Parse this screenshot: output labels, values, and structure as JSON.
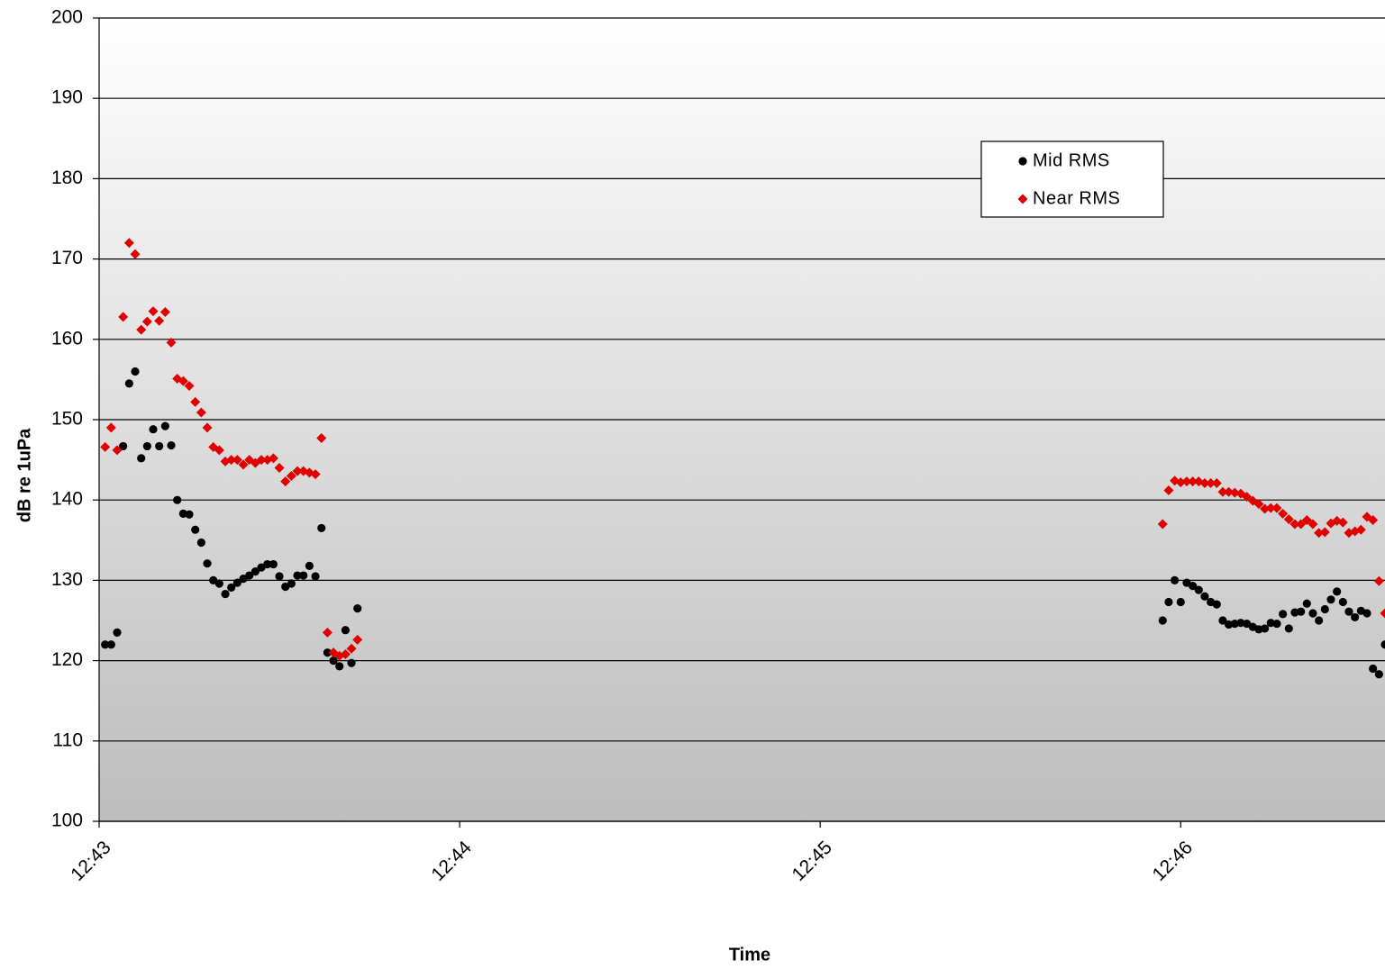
{
  "chart_data": {
    "type": "scatter",
    "x_label": "Time",
    "y_label": "dB re 1uPa",
    "x": [
      "12:43:01",
      "12:43:02",
      "12:43:03",
      "12:43:04",
      "12:43:05",
      "12:43:06",
      "12:43:07",
      "12:43:08",
      "12:43:09",
      "12:43:10",
      "12:43:11",
      "12:43:12",
      "12:43:13",
      "12:43:14",
      "12:43:15",
      "12:43:16",
      "12:43:17",
      "12:43:18",
      "12:43:19",
      "12:43:20",
      "12:43:21",
      "12:43:22",
      "12:43:23",
      "12:43:24",
      "12:43:25",
      "12:43:26",
      "12:43:27",
      "12:43:28",
      "12:43:29",
      "12:43:30",
      "12:43:31",
      "12:43:32",
      "12:43:33",
      "12:43:34",
      "12:43:35",
      "12:43:36",
      "12:43:37",
      "12:43:38",
      "12:43:39",
      "12:43:40",
      "12:43:41",
      "12:43:42",
      "12:43:43",
      "12:45:57",
      "12:45:58",
      "12:45:59",
      "12:46:00",
      "12:46:01",
      "12:46:02",
      "12:46:03",
      "12:46:04",
      "12:46:05",
      "12:46:06",
      "12:46:07",
      "12:46:08",
      "12:46:09",
      "12:46:10",
      "12:46:11",
      "12:46:12",
      "12:46:13",
      "12:46:14",
      "12:46:15",
      "12:46:16",
      "12:46:17",
      "12:46:18",
      "12:46:19",
      "12:46:20",
      "12:46:21",
      "12:46:22",
      "12:46:23",
      "12:46:24",
      "12:46:25",
      "12:46:26",
      "12:46:27",
      "12:46:28",
      "12:46:29",
      "12:46:30",
      "12:46:31",
      "12:46:32",
      "12:46:33",
      "12:46:34"
    ],
    "series": [
      {
        "name": "Mid RMS",
        "color": "#000000",
        "marker": "circle",
        "values": [
          122,
          122,
          123.5,
          146.7,
          154.5,
          156,
          145.2,
          146.7,
          148.8,
          146.7,
          149.2,
          146.8,
          140,
          138.3,
          138.2,
          136.3,
          134.7,
          132.1,
          130,
          129.6,
          128.3,
          129.1,
          129.7,
          130.2,
          130.6,
          131.1,
          131.6,
          132,
          132,
          130.5,
          129.2,
          129.6,
          130.6,
          130.6,
          131.8,
          130.5,
          136.5,
          121,
          120,
          119.3,
          123.8,
          119.7,
          126.5,
          125,
          127.3,
          130,
          127.3,
          129.7,
          129.3,
          128.8,
          128,
          127.3,
          127,
          125,
          124.5,
          124.6,
          124.7,
          124.6,
          124.2,
          123.9,
          124,
          124.7,
          124.6,
          125.8,
          124,
          126,
          126.1,
          127.1,
          125.9,
          125,
          126.4,
          127.6,
          128.6,
          127.3,
          126.1,
          125.4,
          126.2,
          125.9,
          119,
          118.3,
          122
        ]
      },
      {
        "name": "Near RMS",
        "color": "#e00000",
        "marker": "diamond",
        "values": [
          146.6,
          149,
          146.2,
          162.8,
          172,
          170.6,
          161.2,
          162.2,
          163.5,
          162.3,
          163.4,
          159.6,
          155.1,
          154.8,
          154.2,
          152.2,
          150.9,
          149,
          146.6,
          146.2,
          144.8,
          145,
          145,
          144.4,
          145,
          144.6,
          145,
          145,
          145.2,
          144,
          142.3,
          143,
          143.6,
          143.6,
          143.4,
          143.2,
          147.7,
          123.5,
          121,
          120.6,
          120.8,
          121.5,
          122.6,
          137,
          141.2,
          142.4,
          142.2,
          142.3,
          142.3,
          142.3,
          142.1,
          142.1,
          142.1,
          141,
          141,
          140.9,
          140.8,
          140.4,
          139.9,
          139.5,
          138.9,
          139,
          139,
          138.3,
          137.6,
          137,
          137,
          137.5,
          137,
          135.9,
          136,
          137.1,
          137.4,
          137.2,
          135.9,
          136.1,
          136.3,
          137.9,
          137.5,
          129.9,
          125.9
        ]
      }
    ],
    "xlim": [
      "12:43:00",
      "12:46:34"
    ],
    "xticks": [
      "12:43",
      "12:44",
      "12:45",
      "12:46"
    ],
    "ylim": [
      100,
      200
    ],
    "yticks": [
      100,
      110,
      120,
      130,
      140,
      150,
      160,
      170,
      180,
      190,
      200
    ],
    "grid": true,
    "legend": "top-right"
  }
}
